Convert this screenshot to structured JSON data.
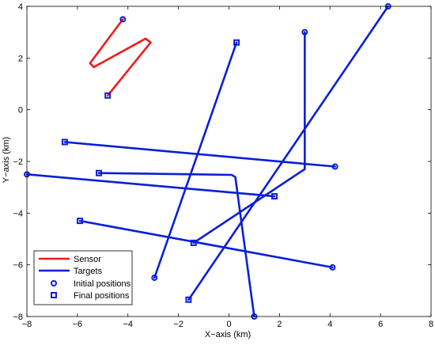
{
  "chart_data": {
    "type": "line",
    "title": "",
    "xlabel": "X−axis (km)",
    "ylabel": "Y−axis (km)",
    "xlim": [
      -8,
      8
    ],
    "ylim": [
      -8,
      4
    ],
    "xticks": [
      -8,
      -6,
      -4,
      -2,
      0,
      2,
      4,
      6,
      8
    ],
    "yticks": [
      -8,
      -6,
      -4,
      -2,
      0,
      2,
      4
    ],
    "xtick_labels": [
      "−8",
      "−6",
      "−4",
      "−2",
      "0",
      "2",
      "4",
      "6",
      "8"
    ],
    "ytick_labels": [
      "−8",
      "−6",
      "−4",
      "−2",
      "0",
      "2",
      "4"
    ],
    "grid": false,
    "legend_position": "bottom-left",
    "legend": [
      {
        "label": "Sensor",
        "kind": "line",
        "color": "#ee1c1c"
      },
      {
        "label": "Targets",
        "kind": "line",
        "color": "#0a1fd6"
      },
      {
        "label": "Initial positions",
        "kind": "circle-marker",
        "color": "#0a1fd6"
      },
      {
        "label": "Final positions",
        "kind": "square-marker",
        "color": "#0a1fd6"
      }
    ],
    "series": [
      {
        "role": "sensor",
        "color": "#ee1c1c",
        "points": [
          [
            -4.2,
            3.5
          ],
          [
            -5.5,
            1.8
          ],
          [
            -5.35,
            1.65
          ],
          [
            -3.3,
            2.75
          ],
          [
            -3.1,
            2.6
          ],
          [
            -4.8,
            0.55
          ]
        ]
      },
      {
        "role": "target",
        "color": "#0a1fd6",
        "points": [
          [
            4.2,
            -2.2
          ],
          [
            -6.5,
            -1.25
          ]
        ]
      },
      {
        "role": "target",
        "color": "#0a1fd6",
        "points": [
          [
            -8.0,
            -2.5
          ],
          [
            1.8,
            -3.35
          ]
        ]
      },
      {
        "role": "target",
        "color": "#0a1fd6",
        "points": [
          [
            4.1,
            -6.1
          ],
          [
            -5.9,
            -4.3
          ]
        ]
      },
      {
        "role": "target",
        "color": "#0a1fd6",
        "points": [
          [
            6.3,
            4.0
          ],
          [
            -1.6,
            -7.35
          ]
        ]
      },
      {
        "role": "target",
        "color": "#0a1fd6",
        "points": [
          [
            -2.95,
            -6.5
          ],
          [
            0.3,
            2.6
          ]
        ]
      },
      {
        "role": "target",
        "color": "#0a1fd6",
        "points": [
          [
            3.0,
            3.0
          ],
          [
            3.0,
            -2.3
          ],
          [
            -1.4,
            -5.15
          ]
        ]
      },
      {
        "role": "target",
        "color": "#0a1fd6",
        "points": [
          [
            1.0,
            -8.0
          ],
          [
            0.25,
            -2.6
          ],
          [
            0.1,
            -2.52
          ],
          [
            -5.15,
            -2.45
          ]
        ]
      }
    ]
  },
  "colors": {
    "sensor": "#ee1c1c",
    "targets": "#0a1fd6",
    "axis": "#000000",
    "background": "#ffffff"
  }
}
